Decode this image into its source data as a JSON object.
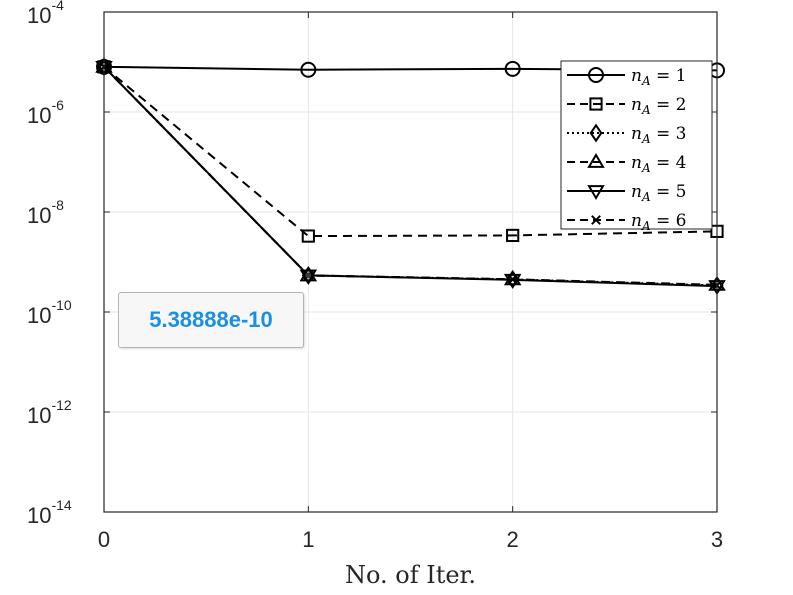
{
  "chart_data": {
    "type": "line",
    "title": "",
    "xlabel": "No. of Iter.",
    "ylabel": "",
    "x": [
      0,
      1,
      2,
      3
    ],
    "x_ticks": [
      "0",
      "1",
      "2",
      "3"
    ],
    "y_scale": "log",
    "y_ticks": [
      {
        "base": "10",
        "exp": "-14",
        "value": 1e-14
      },
      {
        "base": "10",
        "exp": "-12",
        "value": 1e-12
      },
      {
        "base": "10",
        "exp": "-10",
        "value": 1e-10
      },
      {
        "base": "10",
        "exp": "-8",
        "value": 1e-08
      },
      {
        "base": "10",
        "exp": "-6",
        "value": 1e-06
      },
      {
        "base": "10",
        "exp": "-4",
        "value": 0.0001
      }
    ],
    "xlim": [
      0,
      3
    ],
    "ylim": [
      1e-14,
      0.0001
    ],
    "grid": true,
    "legend_position": "top-right",
    "series": [
      {
        "name": "n_A = 1",
        "label_var": "n",
        "label_sub": "A",
        "label_rest": " = 1",
        "line": "solid",
        "marker": "circle",
        "values": [
          8e-06,
          7e-06,
          7.3e-06,
          6.8e-06
        ]
      },
      {
        "name": "n_A = 2",
        "label_var": "n",
        "label_sub": "A",
        "label_rest": " = 2",
        "line": "dashed",
        "marker": "square",
        "values": [
          8e-06,
          3.3e-09,
          3.4e-09,
          4.1e-09
        ]
      },
      {
        "name": "n_A = 3",
        "label_var": "n",
        "label_sub": "A",
        "label_rest": " = 3",
        "line": "dotted",
        "marker": "diamond",
        "values": [
          8e-06,
          5.39e-10,
          4.5e-10,
          3.4e-10
        ]
      },
      {
        "name": "n_A = 4",
        "label_var": "n",
        "label_sub": "A",
        "label_rest": " = 4",
        "line": "dashed",
        "marker": "triangle-up",
        "values": [
          8e-06,
          5.39e-10,
          4.5e-10,
          3.5e-10
        ]
      },
      {
        "name": "n_A = 5",
        "label_var": "n",
        "label_sub": "A",
        "label_rest": " = 5",
        "line": "solid",
        "marker": "triangle-down",
        "values": [
          8e-06,
          5.39e-10,
          4.4e-10,
          3.3e-10
        ]
      },
      {
        "name": "n_A = 6",
        "label_var": "n",
        "label_sub": "A",
        "label_rest": " = 6",
        "line": "dashed",
        "marker": "x",
        "values": [
          8e-06,
          5.39e-10,
          4.5e-10,
          3.4e-10
        ]
      }
    ],
    "datatip": {
      "text": "5.38888e-10",
      "x": 1,
      "y": 5.38888e-10
    }
  }
}
